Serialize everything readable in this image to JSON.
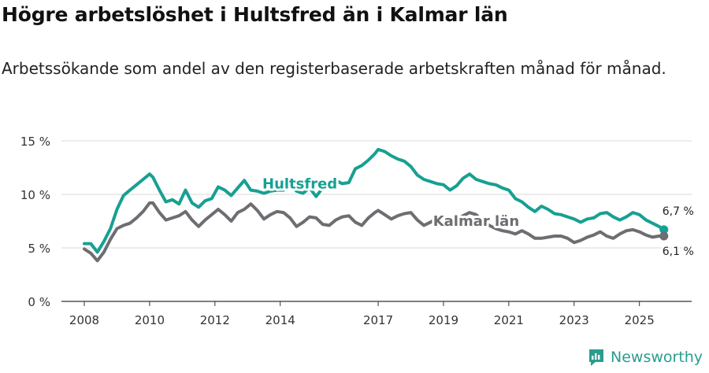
{
  "title": "Högre arbetslöshet i Hultsfred än i Kalmar län",
  "subtitle": "Arbetssökande som andel av den registerbaserade arbetskraften månad för månad.",
  "brand": "Newsworthy",
  "colors": {
    "hultsfred": "#17a092",
    "kalmar": "#6d6d72",
    "grid": "#d8d8d8",
    "axis": "#333333",
    "brand": "#2a9d8f"
  },
  "chart_data": {
    "type": "line",
    "title": "Högre arbetslöshet i Hultsfred än i Kalmar län",
    "ylim": [
      0,
      15
    ],
    "y_ticks": [
      0,
      5,
      10,
      15
    ],
    "y_tick_labels": [
      "0 %",
      "5 %",
      "10 %",
      "15 %"
    ],
    "xlim": [
      2007.3,
      2026.6
    ],
    "x_ticks": [
      2008,
      2010,
      2012,
      2014,
      2017,
      2019,
      2021,
      2023,
      2025
    ],
    "x_tick_labels": [
      "2008",
      "2010",
      "2012",
      "2014",
      "2017",
      "2019",
      "2021",
      "2023",
      "2025"
    ],
    "series": [
      {
        "name": "Hultsfred",
        "label": "Hultsfred",
        "end_label": "6,7 %",
        "x": [
          2008.0,
          2008.2,
          2008.4,
          2008.6,
          2008.8,
          2009.0,
          2009.2,
          2009.4,
          2009.6,
          2009.8,
          2010.0,
          2010.1,
          2010.3,
          2010.5,
          2010.7,
          2010.9,
          2011.1,
          2011.3,
          2011.5,
          2011.7,
          2011.9,
          2012.1,
          2012.3,
          2012.5,
          2012.7,
          2012.9,
          2013.1,
          2013.3,
          2013.5,
          2013.7,
          2013.9,
          2014.1,
          2014.3,
          2014.5,
          2014.7,
          2014.9,
          2015.1,
          2015.3,
          2015.5,
          2015.7,
          2015.9,
          2016.1,
          2016.3,
          2016.5,
          2016.7,
          2016.9,
          2017.0,
          2017.2,
          2017.4,
          2017.6,
          2017.8,
          2018.0,
          2018.2,
          2018.4,
          2018.6,
          2018.8,
          2019.0,
          2019.2,
          2019.4,
          2019.6,
          2019.8,
          2020.0,
          2020.2,
          2020.4,
          2020.6,
          2020.8,
          2021.0,
          2021.2,
          2021.4,
          2021.6,
          2021.8,
          2022.0,
          2022.2,
          2022.4,
          2022.6,
          2022.8,
          2023.0,
          2023.2,
          2023.4,
          2023.6,
          2023.8,
          2024.0,
          2024.2,
          2024.4,
          2024.6,
          2024.8,
          2025.0,
          2025.2,
          2025.4,
          2025.6,
          2025.75
        ],
        "values": [
          5.4,
          5.4,
          4.6,
          5.6,
          6.8,
          8.6,
          9.9,
          10.4,
          10.9,
          11.4,
          11.9,
          11.6,
          10.4,
          9.3,
          9.5,
          9.1,
          10.4,
          9.2,
          8.8,
          9.4,
          9.6,
          10.7,
          10.4,
          9.9,
          10.6,
          11.3,
          10.4,
          10.3,
          10.1,
          10.3,
          10.4,
          10.4,
          10.9,
          10.3,
          10.1,
          10.6,
          9.8,
          10.6,
          11.0,
          11.3,
          11.0,
          11.1,
          12.4,
          12.7,
          13.2,
          13.8,
          14.2,
          14.0,
          13.6,
          13.3,
          13.1,
          12.6,
          11.8,
          11.4,
          11.2,
          11.0,
          10.9,
          10.4,
          10.8,
          11.5,
          11.9,
          11.4,
          11.2,
          11.0,
          10.9,
          10.6,
          10.4,
          9.6,
          9.3,
          8.8,
          8.4,
          8.9,
          8.6,
          8.2,
          8.1,
          7.9,
          7.7,
          7.4,
          7.7,
          7.8,
          8.2,
          8.3,
          7.9,
          7.6,
          7.9,
          8.3,
          8.1,
          7.6,
          7.3,
          7.0,
          6.7
        ]
      },
      {
        "name": "Kalmar län",
        "label": "Kalmar län",
        "end_label": "6,1 %",
        "x": [
          2008.0,
          2008.2,
          2008.4,
          2008.6,
          2008.8,
          2009.0,
          2009.2,
          2009.4,
          2009.6,
          2009.8,
          2010.0,
          2010.1,
          2010.3,
          2010.5,
          2010.7,
          2010.9,
          2011.1,
          2011.3,
          2011.5,
          2011.7,
          2011.9,
          2012.1,
          2012.3,
          2012.5,
          2012.7,
          2012.9,
          2013.1,
          2013.3,
          2013.5,
          2013.7,
          2013.9,
          2014.1,
          2014.3,
          2014.5,
          2014.7,
          2014.9,
          2015.1,
          2015.3,
          2015.5,
          2015.7,
          2015.9,
          2016.1,
          2016.3,
          2016.5,
          2016.7,
          2016.9,
          2017.0,
          2017.2,
          2017.4,
          2017.6,
          2017.8,
          2018.0,
          2018.2,
          2018.4,
          2018.6,
          2018.8,
          2019.0,
          2019.2,
          2019.4,
          2019.6,
          2019.8,
          2020.0,
          2020.2,
          2020.4,
          2020.6,
          2020.8,
          2021.0,
          2021.2,
          2021.4,
          2021.6,
          2021.8,
          2022.0,
          2022.2,
          2022.4,
          2022.6,
          2022.8,
          2023.0,
          2023.2,
          2023.4,
          2023.6,
          2023.8,
          2024.0,
          2024.2,
          2024.4,
          2024.6,
          2024.8,
          2025.0,
          2025.2,
          2025.4,
          2025.6,
          2025.75
        ],
        "values": [
          4.9,
          4.5,
          3.8,
          4.6,
          5.8,
          6.8,
          7.1,
          7.3,
          7.8,
          8.4,
          9.2,
          9.2,
          8.3,
          7.6,
          7.8,
          8.0,
          8.4,
          7.6,
          7.0,
          7.6,
          8.1,
          8.6,
          8.1,
          7.5,
          8.3,
          8.6,
          9.1,
          8.5,
          7.7,
          8.1,
          8.4,
          8.3,
          7.8,
          7.0,
          7.4,
          7.9,
          7.8,
          7.2,
          7.1,
          7.6,
          7.9,
          8.0,
          7.4,
          7.1,
          7.8,
          8.3,
          8.5,
          8.1,
          7.7,
          8.0,
          8.2,
          8.3,
          7.6,
          7.1,
          7.4,
          7.8,
          8.0,
          7.5,
          7.6,
          8.0,
          8.3,
          8.1,
          7.5,
          7.1,
          6.8,
          6.6,
          6.5,
          6.3,
          6.6,
          6.3,
          5.9,
          5.9,
          6.0,
          6.1,
          6.1,
          5.9,
          5.5,
          5.7,
          6.0,
          6.2,
          6.5,
          6.1,
          5.9,
          6.3,
          6.6,
          6.7,
          6.5,
          6.2,
          6.0,
          6.1,
          6.1
        ]
      }
    ]
  }
}
